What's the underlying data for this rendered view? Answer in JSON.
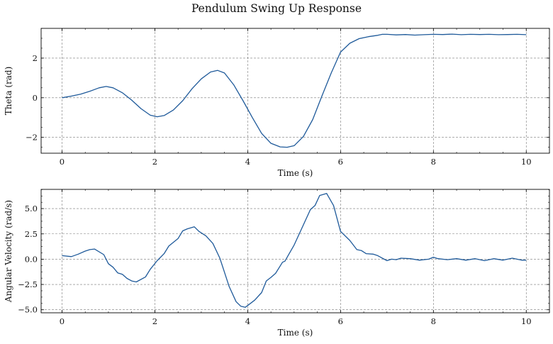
{
  "figure": {
    "title": "Pendulum Swing Up Response"
  },
  "style": {
    "line_color": "#1f5a9a",
    "grid_color": "#7a7a7a",
    "axis_color": "#000000"
  },
  "chart_data": [
    {
      "type": "line",
      "title": "",
      "xlabel": "Time (s)",
      "ylabel": "Theta (rad)",
      "xlim": [
        -0.45,
        10.5
      ],
      "ylim": [
        -2.8,
        3.5
      ],
      "xticks": [
        0,
        2,
        4,
        6,
        8,
        10
      ],
      "xtick_labels": [
        "0",
        "2",
        "4",
        "6",
        "8",
        "10"
      ],
      "yticks": [
        -2,
        0,
        2
      ],
      "ytick_labels": [
        "−2",
        "0",
        "2"
      ],
      "grid": true,
      "series": [
        {
          "x": [
            0,
            0.2,
            0.4,
            0.6,
            0.8,
            0.95,
            1.1,
            1.3,
            1.5,
            1.7,
            1.9,
            2.05,
            2.2,
            2.4,
            2.6,
            2.8,
            3.0,
            3.2,
            3.35,
            3.5,
            3.7,
            3.9,
            4.1,
            4.3,
            4.5,
            4.7,
            4.85,
            5.0,
            5.2,
            5.4,
            5.6,
            5.8,
            6.0,
            6.2,
            6.4,
            6.6,
            6.8,
            6.9,
            7.0,
            7.2,
            7.4,
            7.6,
            7.8,
            8.0,
            8.2,
            8.4,
            8.6,
            8.8,
            9.0,
            9.2,
            9.4,
            9.6,
            9.8,
            10.0
          ],
          "y": [
            0.0,
            0.08,
            0.18,
            0.33,
            0.5,
            0.57,
            0.5,
            0.25,
            -0.12,
            -0.55,
            -0.88,
            -0.96,
            -0.9,
            -0.62,
            -0.15,
            0.45,
            0.95,
            1.3,
            1.38,
            1.25,
            0.65,
            -0.15,
            -1.0,
            -1.8,
            -2.3,
            -2.48,
            -2.5,
            -2.42,
            -1.95,
            -1.1,
            0.1,
            1.25,
            2.3,
            2.75,
            2.98,
            3.08,
            3.15,
            3.2,
            3.2,
            3.17,
            3.19,
            3.16,
            3.18,
            3.2,
            3.19,
            3.21,
            3.18,
            3.2,
            3.19,
            3.2,
            3.18,
            3.19,
            3.2,
            3.18
          ]
        }
      ]
    },
    {
      "type": "line",
      "title": "",
      "xlabel": "Time (s)",
      "ylabel": "Angular Velocity (rad/s)",
      "xlim": [
        -0.45,
        10.5
      ],
      "ylim": [
        -5.3,
        6.9
      ],
      "xticks": [
        0,
        2,
        4,
        6,
        8,
        10
      ],
      "xtick_labels": [
        "0",
        "2",
        "4",
        "6",
        "8",
        "10"
      ],
      "yticks": [
        -5.0,
        -2.5,
        0.0,
        2.5,
        5.0
      ],
      "ytick_labels": [
        "−5.0",
        "−2.5",
        "0.0",
        "2.5",
        "5.0"
      ],
      "grid": true,
      "series": [
        {
          "x": [
            0,
            0.2,
            0.35,
            0.5,
            0.6,
            0.7,
            0.9,
            1.0,
            1.1,
            1.2,
            1.3,
            1.4,
            1.5,
            1.6,
            1.8,
            1.9,
            2.05,
            2.2,
            2.3,
            2.5,
            2.6,
            2.7,
            2.85,
            2.95,
            3.1,
            3.25,
            3.4,
            3.6,
            3.75,
            3.85,
            3.95,
            4.05,
            4.15,
            4.3,
            4.4,
            4.5,
            4.6,
            4.75,
            4.8,
            4.9,
            5.0,
            5.2,
            5.35,
            5.45,
            5.55,
            5.7,
            5.85,
            6.0,
            6.2,
            6.35,
            6.45,
            6.55,
            6.7,
            6.8,
            7.0,
            7.1,
            7.2,
            7.3,
            7.5,
            7.7,
            7.9,
            8.0,
            8.1,
            8.3,
            8.5,
            8.7,
            8.9,
            9.1,
            9.3,
            9.5,
            9.7,
            9.9,
            10.0
          ],
          "y": [
            0.35,
            0.25,
            0.5,
            0.8,
            0.95,
            1.0,
            0.45,
            -0.45,
            -0.8,
            -1.35,
            -1.5,
            -1.9,
            -2.15,
            -2.25,
            -1.75,
            -1.0,
            -0.15,
            0.55,
            1.3,
            2.05,
            2.8,
            3.0,
            3.2,
            2.75,
            2.3,
            1.55,
            0.1,
            -2.7,
            -4.2,
            -4.65,
            -4.75,
            -4.4,
            -4.05,
            -3.3,
            -2.15,
            -1.8,
            -1.4,
            -0.3,
            -0.2,
            0.6,
            1.4,
            3.4,
            4.9,
            5.3,
            6.3,
            6.5,
            5.3,
            2.75,
            1.85,
            0.95,
            0.85,
            0.55,
            0.5,
            0.35,
            -0.15,
            0.0,
            -0.05,
            0.1,
            0.05,
            -0.1,
            0.0,
            0.2,
            0.05,
            -0.05,
            0.05,
            -0.1,
            0.05,
            -0.15,
            0.05,
            -0.1,
            0.1,
            -0.1,
            -0.1
          ]
        }
      ]
    }
  ]
}
